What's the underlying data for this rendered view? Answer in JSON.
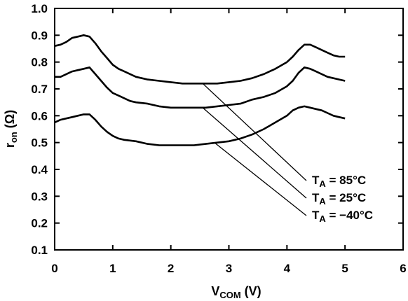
{
  "chart_data": {
    "type": "line",
    "xlabel": {
      "main": "V",
      "sub": "COM",
      "unit": " (V)"
    },
    "ylabel": {
      "main": "r",
      "sub": "on",
      "unit": " (Ω)"
    },
    "xlim": [
      0,
      6
    ],
    "ylim": [
      0.1,
      1.0
    ],
    "xticks": [
      0,
      1,
      2,
      3,
      4,
      5,
      6
    ],
    "yticks": [
      0.1,
      0.2,
      0.3,
      0.4,
      0.5,
      0.6,
      0.7,
      0.8,
      0.9,
      1.0
    ],
    "xtick_labels": [
      "0",
      "1",
      "2",
      "3",
      "4",
      "5",
      "6"
    ],
    "ytick_labels": [
      "0.1",
      "0.2",
      "0.3",
      "0.4",
      "0.5",
      "0.6",
      "0.7",
      "0.8",
      "0.9",
      "1.0"
    ],
    "grid": false,
    "series": [
      {
        "name": "T_A = 85°C",
        "label_main": "T",
        "label_sub": "A",
        "label_rest": " = 85°C",
        "points": [
          [
            0,
            0.86
          ],
          [
            0.1,
            0.865
          ],
          [
            0.2,
            0.875
          ],
          [
            0.3,
            0.89
          ],
          [
            0.4,
            0.895
          ],
          [
            0.5,
            0.9
          ],
          [
            0.6,
            0.895
          ],
          [
            0.7,
            0.87
          ],
          [
            0.8,
            0.84
          ],
          [
            0.9,
            0.815
          ],
          [
            1.0,
            0.79
          ],
          [
            1.1,
            0.775
          ],
          [
            1.2,
            0.765
          ],
          [
            1.3,
            0.755
          ],
          [
            1.4,
            0.745
          ],
          [
            1.5,
            0.74
          ],
          [
            1.6,
            0.735
          ],
          [
            1.8,
            0.73
          ],
          [
            2.0,
            0.725
          ],
          [
            2.2,
            0.72
          ],
          [
            2.4,
            0.72
          ],
          [
            2.6,
            0.72
          ],
          [
            2.8,
            0.72
          ],
          [
            3.0,
            0.725
          ],
          [
            3.2,
            0.73
          ],
          [
            3.4,
            0.74
          ],
          [
            3.6,
            0.755
          ],
          [
            3.8,
            0.775
          ],
          [
            4.0,
            0.8
          ],
          [
            4.1,
            0.82
          ],
          [
            4.2,
            0.845
          ],
          [
            4.3,
            0.865
          ],
          [
            4.4,
            0.865
          ],
          [
            4.5,
            0.855
          ],
          [
            4.6,
            0.845
          ],
          [
            4.7,
            0.835
          ],
          [
            4.8,
            0.825
          ],
          [
            4.9,
            0.82
          ],
          [
            5.0,
            0.82
          ]
        ]
      },
      {
        "name": "T_A = 25°C",
        "label_main": "T",
        "label_sub": "A",
        "label_rest": " = 25°C",
        "points": [
          [
            0,
            0.745
          ],
          [
            0.1,
            0.745
          ],
          [
            0.2,
            0.755
          ],
          [
            0.3,
            0.765
          ],
          [
            0.4,
            0.77
          ],
          [
            0.5,
            0.775
          ],
          [
            0.6,
            0.78
          ],
          [
            0.7,
            0.755
          ],
          [
            0.8,
            0.73
          ],
          [
            0.9,
            0.705
          ],
          [
            1.0,
            0.685
          ],
          [
            1.1,
            0.675
          ],
          [
            1.2,
            0.665
          ],
          [
            1.3,
            0.655
          ],
          [
            1.4,
            0.65
          ],
          [
            1.6,
            0.645
          ],
          [
            1.8,
            0.635
          ],
          [
            2.0,
            0.63
          ],
          [
            2.2,
            0.63
          ],
          [
            2.4,
            0.63
          ],
          [
            2.6,
            0.63
          ],
          [
            2.8,
            0.635
          ],
          [
            3.0,
            0.64
          ],
          [
            3.2,
            0.645
          ],
          [
            3.4,
            0.66
          ],
          [
            3.6,
            0.67
          ],
          [
            3.8,
            0.685
          ],
          [
            4.0,
            0.71
          ],
          [
            4.1,
            0.73
          ],
          [
            4.2,
            0.76
          ],
          [
            4.3,
            0.78
          ],
          [
            4.4,
            0.775
          ],
          [
            4.5,
            0.765
          ],
          [
            4.6,
            0.755
          ],
          [
            4.7,
            0.745
          ],
          [
            4.8,
            0.74
          ],
          [
            4.9,
            0.735
          ],
          [
            5.0,
            0.73
          ]
        ]
      },
      {
        "name": "T_A = −40°C",
        "label_main": "T",
        "label_sub": "A",
        "label_rest": " = −40°C",
        "points": [
          [
            0,
            0.575
          ],
          [
            0.1,
            0.585
          ],
          [
            0.2,
            0.59
          ],
          [
            0.3,
            0.595
          ],
          [
            0.4,
            0.6
          ],
          [
            0.5,
            0.605
          ],
          [
            0.6,
            0.605
          ],
          [
            0.7,
            0.585
          ],
          [
            0.8,
            0.56
          ],
          [
            0.9,
            0.54
          ],
          [
            1.0,
            0.525
          ],
          [
            1.1,
            0.515
          ],
          [
            1.2,
            0.51
          ],
          [
            1.4,
            0.505
          ],
          [
            1.6,
            0.495
          ],
          [
            1.8,
            0.49
          ],
          [
            2.0,
            0.49
          ],
          [
            2.2,
            0.49
          ],
          [
            2.4,
            0.49
          ],
          [
            2.6,
            0.495
          ],
          [
            2.8,
            0.5
          ],
          [
            3.0,
            0.505
          ],
          [
            3.2,
            0.515
          ],
          [
            3.4,
            0.53
          ],
          [
            3.6,
            0.55
          ],
          [
            3.8,
            0.575
          ],
          [
            4.0,
            0.6
          ],
          [
            4.1,
            0.62
          ],
          [
            4.2,
            0.63
          ],
          [
            4.3,
            0.635
          ],
          [
            4.4,
            0.63
          ],
          [
            4.5,
            0.625
          ],
          [
            4.6,
            0.62
          ],
          [
            4.7,
            0.61
          ],
          [
            4.8,
            0.6
          ],
          [
            4.9,
            0.595
          ],
          [
            5.0,
            0.59
          ]
        ]
      }
    ],
    "annotations": [
      {
        "series": 0,
        "from": [
          2.55,
          0.72
        ]
      },
      {
        "series": 1,
        "from": [
          2.55,
          0.63
        ]
      },
      {
        "series": 2,
        "from": [
          2.75,
          0.5
        ]
      }
    ]
  }
}
